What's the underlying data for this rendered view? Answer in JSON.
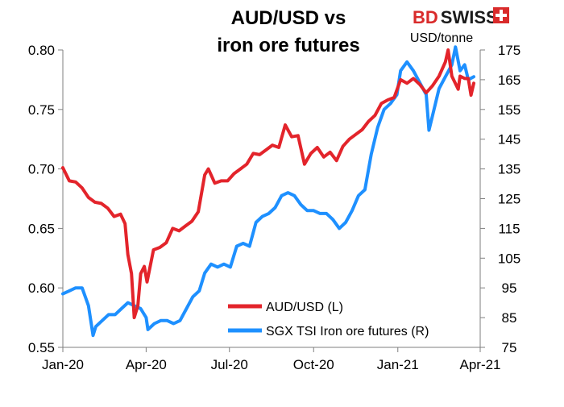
{
  "brand": {
    "bd": "BD",
    "swiss": "SWISS",
    "bd_color": "#d92b2b",
    "swiss_color": "#1b1b1b"
  },
  "chart_data": {
    "type": "line",
    "title_lines": [
      "AUD/USD vs",
      "iron ore futures"
    ],
    "right_axis_unit": "USD/tonne",
    "x_ticks": [
      "Jan-20",
      "Apr-20",
      "Jul-20",
      "Oct-20",
      "Jan-21",
      "Apr-21"
    ],
    "x_range": [
      "2020-01-01",
      "2021-04-01"
    ],
    "y_left": {
      "range": [
        0.55,
        0.8
      ],
      "ticks": [
        "0.55",
        "0.60",
        "0.65",
        "0.70",
        "0.75",
        "0.80"
      ]
    },
    "y_right": {
      "range": [
        75,
        175
      ],
      "ticks": [
        "75",
        "85",
        "95",
        "105",
        "115",
        "125",
        "135",
        "145",
        "155",
        "165",
        "175"
      ]
    },
    "legend_position": "bottom-right",
    "series": [
      {
        "name": "AUD/USD (L)",
        "axis": "left",
        "color": "#e3242b",
        "points": [
          [
            "2020-01-01",
            0.701
          ],
          [
            "2020-01-08",
            0.69
          ],
          [
            "2020-01-15",
            0.689
          ],
          [
            "2020-01-22",
            0.684
          ],
          [
            "2020-01-29",
            0.676
          ],
          [
            "2020-02-05",
            0.672
          ],
          [
            "2020-02-12",
            0.671
          ],
          [
            "2020-02-19",
            0.667
          ],
          [
            "2020-02-26",
            0.66
          ],
          [
            "2020-03-04",
            0.662
          ],
          [
            "2020-03-09",
            0.654
          ],
          [
            "2020-03-12",
            0.628
          ],
          [
            "2020-03-16",
            0.612
          ],
          [
            "2020-03-19",
            0.575
          ],
          [
            "2020-03-23",
            0.585
          ],
          [
            "2020-03-26",
            0.612
          ],
          [
            "2020-03-30",
            0.618
          ],
          [
            "2020-04-02",
            0.605
          ],
          [
            "2020-04-09",
            0.632
          ],
          [
            "2020-04-16",
            0.634
          ],
          [
            "2020-04-23",
            0.638
          ],
          [
            "2020-04-30",
            0.65
          ],
          [
            "2020-05-07",
            0.648
          ],
          [
            "2020-05-14",
            0.652
          ],
          [
            "2020-05-21",
            0.656
          ],
          [
            "2020-05-28",
            0.664
          ],
          [
            "2020-06-04",
            0.695
          ],
          [
            "2020-06-08",
            0.7
          ],
          [
            "2020-06-15",
            0.688
          ],
          [
            "2020-06-22",
            0.69
          ],
          [
            "2020-06-29",
            0.69
          ],
          [
            "2020-07-06",
            0.696
          ],
          [
            "2020-07-13",
            0.7
          ],
          [
            "2020-07-20",
            0.704
          ],
          [
            "2020-07-27",
            0.713
          ],
          [
            "2020-08-03",
            0.712
          ],
          [
            "2020-08-10",
            0.716
          ],
          [
            "2020-08-17",
            0.72
          ],
          [
            "2020-08-24",
            0.718
          ],
          [
            "2020-08-31",
            0.737
          ],
          [
            "2020-09-07",
            0.727
          ],
          [
            "2020-09-14",
            0.728
          ],
          [
            "2020-09-21",
            0.704
          ],
          [
            "2020-09-28",
            0.713
          ],
          [
            "2020-10-05",
            0.718
          ],
          [
            "2020-10-12",
            0.71
          ],
          [
            "2020-10-19",
            0.714
          ],
          [
            "2020-10-26",
            0.707
          ],
          [
            "2020-11-02",
            0.719
          ],
          [
            "2020-11-09",
            0.725
          ],
          [
            "2020-11-16",
            0.729
          ],
          [
            "2020-11-23",
            0.733
          ],
          [
            "2020-11-30",
            0.74
          ],
          [
            "2020-12-07",
            0.745
          ],
          [
            "2020-12-14",
            0.755
          ],
          [
            "2020-12-21",
            0.758
          ],
          [
            "2020-12-28",
            0.76
          ],
          [
            "2021-01-04",
            0.775
          ],
          [
            "2021-01-11",
            0.772
          ],
          [
            "2021-01-18",
            0.776
          ],
          [
            "2021-01-25",
            0.771
          ],
          [
            "2021-02-01",
            0.764
          ],
          [
            "2021-02-08",
            0.77
          ],
          [
            "2021-02-15",
            0.778
          ],
          [
            "2021-02-22",
            0.79
          ],
          [
            "2021-02-25",
            0.8
          ],
          [
            "2021-03-01",
            0.778
          ],
          [
            "2021-03-08",
            0.767
          ],
          [
            "2021-03-10",
            0.778
          ],
          [
            "2021-03-15",
            0.776
          ],
          [
            "2021-03-19",
            0.776
          ],
          [
            "2021-03-22",
            0.762
          ],
          [
            "2021-03-25",
            0.772
          ]
        ]
      },
      {
        "name": "SGX TSI Iron ore futures (R)",
        "axis": "right",
        "color": "#1e90ff",
        "points": [
          [
            "2020-01-01",
            93
          ],
          [
            "2020-01-08",
            94
          ],
          [
            "2020-01-15",
            95
          ],
          [
            "2020-01-22",
            95
          ],
          [
            "2020-01-29",
            89
          ],
          [
            "2020-02-03",
            79
          ],
          [
            "2020-02-06",
            82
          ],
          [
            "2020-02-13",
            84
          ],
          [
            "2020-02-20",
            86
          ],
          [
            "2020-02-27",
            86
          ],
          [
            "2020-03-05",
            88
          ],
          [
            "2020-03-12",
            90
          ],
          [
            "2020-03-19",
            89
          ],
          [
            "2020-03-26",
            88
          ],
          [
            "2020-04-01",
            85
          ],
          [
            "2020-04-03",
            81
          ],
          [
            "2020-04-10",
            83
          ],
          [
            "2020-04-17",
            84
          ],
          [
            "2020-04-24",
            84
          ],
          [
            "2020-05-01",
            83
          ],
          [
            "2020-05-08",
            84
          ],
          [
            "2020-05-15",
            88
          ],
          [
            "2020-05-22",
            92
          ],
          [
            "2020-05-29",
            94
          ],
          [
            "2020-06-04",
            100
          ],
          [
            "2020-06-11",
            103
          ],
          [
            "2020-06-18",
            102
          ],
          [
            "2020-06-25",
            103
          ],
          [
            "2020-07-02",
            102
          ],
          [
            "2020-07-09",
            109
          ],
          [
            "2020-07-16",
            110
          ],
          [
            "2020-07-23",
            109
          ],
          [
            "2020-07-30",
            117
          ],
          [
            "2020-08-06",
            119
          ],
          [
            "2020-08-13",
            120
          ],
          [
            "2020-08-20",
            122
          ],
          [
            "2020-08-27",
            126
          ],
          [
            "2020-09-03",
            127
          ],
          [
            "2020-09-10",
            126
          ],
          [
            "2020-09-17",
            123
          ],
          [
            "2020-09-24",
            121
          ],
          [
            "2020-10-01",
            121
          ],
          [
            "2020-10-08",
            120
          ],
          [
            "2020-10-15",
            120
          ],
          [
            "2020-10-22",
            118
          ],
          [
            "2020-10-29",
            115
          ],
          [
            "2020-11-05",
            117
          ],
          [
            "2020-11-12",
            121
          ],
          [
            "2020-11-19",
            126
          ],
          [
            "2020-11-26",
            128
          ],
          [
            "2020-12-03",
            140
          ],
          [
            "2020-12-10",
            149
          ],
          [
            "2020-12-17",
            155
          ],
          [
            "2020-12-24",
            157
          ],
          [
            "2020-12-31",
            160
          ],
          [
            "2021-01-04",
            168
          ],
          [
            "2021-01-11",
            171
          ],
          [
            "2021-01-18",
            168
          ],
          [
            "2021-01-25",
            164
          ],
          [
            "2021-02-01",
            160
          ],
          [
            "2021-02-04",
            148
          ],
          [
            "2021-02-08",
            153
          ],
          [
            "2021-02-15",
            162
          ],
          [
            "2021-02-22",
            166
          ],
          [
            "2021-03-01",
            170
          ],
          [
            "2021-03-05",
            176
          ],
          [
            "2021-03-10",
            168
          ],
          [
            "2021-03-15",
            170
          ],
          [
            "2021-03-19",
            165
          ],
          [
            "2021-03-25",
            166
          ]
        ]
      }
    ]
  }
}
